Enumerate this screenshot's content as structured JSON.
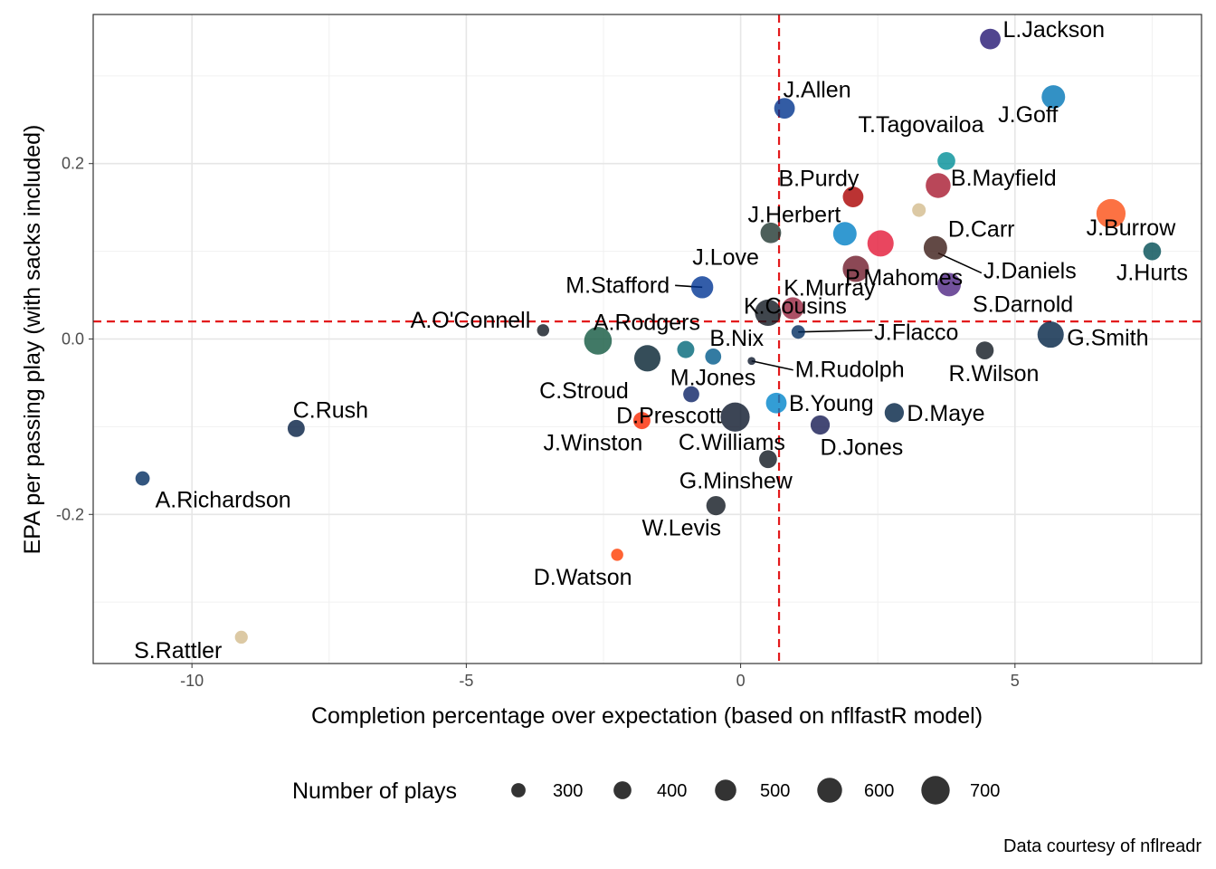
{
  "chart_data": {
    "type": "scatter",
    "xlabel": "Completion percentage over expectation (based on nflfastR model)",
    "ylabel": "EPA per passing play (with sacks included)",
    "caption": "Data courtesy of nflreadr",
    "xlim": [
      -11.8,
      8.4
    ],
    "ylim": [
      -0.37,
      0.37
    ],
    "x_ticks": [
      -10,
      -5,
      0,
      5
    ],
    "x_tick_labels": [
      "-10",
      "-5",
      "0",
      "5"
    ],
    "y_ticks": [
      -0.2,
      0.0,
      0.2
    ],
    "y_tick_labels": [
      "-0.2",
      "0.0",
      "0.2"
    ],
    "grid": true,
    "reference_lines": {
      "x": 0.7,
      "y": 0.02,
      "color": "#e31a1c",
      "style": "dashed"
    },
    "legend": {
      "title": "Number of plays",
      "position": "bottom",
      "entries": [
        {
          "label": "300",
          "plays": 300
        },
        {
          "label": "400",
          "plays": 400
        },
        {
          "label": "500",
          "plays": 500
        },
        {
          "label": "600",
          "plays": 600
        },
        {
          "label": "700",
          "plays": 700
        }
      ]
    },
    "points": [
      {
        "name": "L.Jackson",
        "x": 4.55,
        "y": 0.342,
        "plays": 480,
        "color": "#241773"
      },
      {
        "name": "J.Goff",
        "x": 5.7,
        "y": 0.276,
        "plays": 560,
        "color": "#0076B6"
      },
      {
        "name": "J.Allen",
        "x": 0.8,
        "y": 0.263,
        "plays": 480,
        "color": "#00338D"
      },
      {
        "name": "T.Tagovailoa",
        "x": 3.75,
        "y": 0.203,
        "plays": 400,
        "color": "#008E97"
      },
      {
        "name": "B.Mayfield",
        "x": 3.6,
        "y": 0.175,
        "plays": 600,
        "color": "#A71930"
      },
      {
        "name": "B.Purdy",
        "x": 2.05,
        "y": 0.162,
        "plays": 480,
        "color": "#AA0000"
      },
      {
        "name": "",
        "x": 3.25,
        "y": 0.147,
        "plays": 280,
        "color": "#D3BC8D"
      },
      {
        "name": "J.Burrow",
        "x": 6.75,
        "y": 0.143,
        "plays": 720,
        "color": "#FB4F14"
      },
      {
        "name": "J.Herbert",
        "x": 0.55,
        "y": 0.121,
        "plays": 480,
        "color": "#203731"
      },
      {
        "name": "",
        "x": 1.9,
        "y": 0.12,
        "plays": 560,
        "color": "#0080C6"
      },
      {
        "name": "",
        "x": 2.55,
        "y": 0.109,
        "plays": 640,
        "color": "#E31837"
      },
      {
        "name": "D.Carr",
        "x": 3.55,
        "y": 0.104,
        "plays": 560,
        "color": "#3B1C17"
      },
      {
        "name": "J.Hurts",
        "x": 7.5,
        "y": 0.1,
        "plays": 400,
        "color": "#004C54"
      },
      {
        "name": "P.Mahomes",
        "x": 2.1,
        "y": 0.08,
        "plays": 640,
        "color": "#6F1A2B"
      },
      {
        "name": "J.Daniels",
        "x": 3.6,
        "y": 0.098,
        "plays": 0,
        "color": "#5A1414"
      },
      {
        "name": "S.Darnold",
        "x": 3.8,
        "y": 0.062,
        "plays": 560,
        "color": "#4F2683"
      },
      {
        "name": "M.Stafford",
        "x": -0.7,
        "y": 0.059,
        "plays": 520,
        "color": "#003594"
      },
      {
        "name": "J.Love",
        "x": -0.7,
        "y": 0.059,
        "plays": 0,
        "color": "#203731"
      },
      {
        "name": "K.Murray",
        "x": 0.95,
        "y": 0.035,
        "plays": 520,
        "color": "#97233F"
      },
      {
        "name": "K.Cousins",
        "x": 0.5,
        "y": 0.03,
        "plays": 640,
        "color": "#101820"
      },
      {
        "name": "G.Smith",
        "x": 5.65,
        "y": 0.005,
        "plays": 640,
        "color": "#002244"
      },
      {
        "name": "A.O'Connell",
        "x": -3.6,
        "y": 0.01,
        "plays": 240,
        "color": "#101820"
      },
      {
        "name": "A.Rodgers",
        "x": -2.6,
        "y": -0.002,
        "plays": 680,
        "color": "#125740"
      },
      {
        "name": "J.Flacco",
        "x": 1.05,
        "y": 0.008,
        "plays": 280,
        "color": "#002C5F"
      },
      {
        "name": "B.Nix",
        "x": -0.5,
        "y": -0.02,
        "plays": 350,
        "color": "#005A8B"
      },
      {
        "name": "",
        "x": -1.0,
        "y": -0.012,
        "plays": 380,
        "color": "#006778"
      },
      {
        "name": "C.Stroud",
        "x": -1.7,
        "y": -0.022,
        "plays": 640,
        "color": "#03202F"
      },
      {
        "name": "M.Rudolph",
        "x": 0.2,
        "y": -0.025,
        "plays": 120,
        "color": "#0B162A"
      },
      {
        "name": "R.Wilson",
        "x": 4.45,
        "y": -0.013,
        "plays": 400,
        "color": "#101820"
      },
      {
        "name": "M.Jones",
        "x": -0.9,
        "y": -0.063,
        "plays": 350,
        "color": "#0B2265"
      },
      {
        "name": "D.Prescott",
        "x": -1.8,
        "y": -0.093,
        "plays": 380,
        "color": "#FB2800"
      },
      {
        "name": "",
        "x": -0.1,
        "y": -0.089,
        "plays": 720,
        "color": "#0B162A"
      },
      {
        "name": "B.Young",
        "x": 0.65,
        "y": -0.073,
        "plays": 480,
        "color": "#0085CA"
      },
      {
        "name": "D.Maye",
        "x": 2.8,
        "y": -0.084,
        "plays": 440,
        "color": "#002244"
      },
      {
        "name": "D.Jones",
        "x": 1.45,
        "y": -0.098,
        "plays": 440,
        "color": "#151A52"
      },
      {
        "name": "J.Winston",
        "x": -1.8,
        "y": -0.093,
        "plays": 0,
        "color": "#311D00"
      },
      {
        "name": "C.Williams",
        "x": 0.5,
        "y": -0.137,
        "plays": 400,
        "color": "#101820"
      },
      {
        "name": "C.Rush",
        "x": -8.1,
        "y": -0.102,
        "plays": 380,
        "color": "#041E42"
      },
      {
        "name": "A.Richardson",
        "x": -10.9,
        "y": -0.159,
        "plays": 300,
        "color": "#002C5F"
      },
      {
        "name": "G.Minshew",
        "x": -0.45,
        "y": -0.19,
        "plays": 440,
        "color": "#101820"
      },
      {
        "name": "W.Levis",
        "x": -0.45,
        "y": -0.19,
        "plays": 0,
        "color": "#0C2340"
      },
      {
        "name": "D.Watson",
        "x": -2.25,
        "y": -0.246,
        "plays": 240,
        "color": "#FF3C00"
      },
      {
        "name": "S.Rattler",
        "x": -9.1,
        "y": -0.34,
        "plays": 260,
        "color": "#D3BC8D"
      }
    ]
  }
}
